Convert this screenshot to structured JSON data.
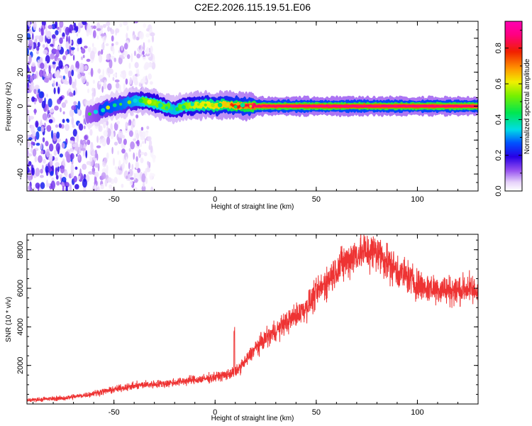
{
  "title": "C2E2.2026.115.19.51.E06",
  "chart_data": [
    {
      "type": "heatmap",
      "name": "spectrogram",
      "xlabel": "Height of straight line (km)",
      "ylabel": "Frequency (Hz)",
      "xlim": [
        -93,
        130
      ],
      "ylim": [
        -50,
        50
      ],
      "xticks": [
        -50,
        0,
        50,
        100
      ],
      "yticks": [
        -40,
        -20,
        0,
        20,
        40
      ],
      "colorbar": {
        "label": "Normalized spectral amplitude",
        "range": [
          0.0,
          0.95
        ],
        "ticks": [
          0.0,
          0.2,
          0.4,
          0.6,
          0.8
        ],
        "tick_labels": [
          "0.0",
          "0.2",
          "0.4",
          "0.6",
          "0.8"
        ]
      },
      "noise_region_x": [
        -93,
        -30
      ],
      "ridge": [
        {
          "x": -63,
          "y": -5,
          "amp": 0.25
        },
        {
          "x": -60,
          "y": -4,
          "amp": 0.3
        },
        {
          "x": -57,
          "y": -3,
          "amp": 0.35
        },
        {
          "x": -54,
          "y": -1,
          "amp": 0.4
        },
        {
          "x": -50,
          "y": 0,
          "amp": 0.42
        },
        {
          "x": -46,
          "y": 1,
          "amp": 0.45
        },
        {
          "x": -42,
          "y": 3,
          "amp": 0.5
        },
        {
          "x": -38,
          "y": 3,
          "amp": 0.55
        },
        {
          "x": -34,
          "y": 3,
          "amp": 0.6
        },
        {
          "x": -30,
          "y": 2,
          "amp": 0.62
        },
        {
          "x": -26,
          "y": 0,
          "amp": 0.6
        },
        {
          "x": -20,
          "y": -2,
          "amp": 0.55
        },
        {
          "x": -15,
          "y": 0,
          "amp": 0.6
        },
        {
          "x": -10,
          "y": 0,
          "amp": 0.7
        },
        {
          "x": -5,
          "y": 1,
          "amp": 0.72
        },
        {
          "x": 0,
          "y": 0,
          "amp": 0.75
        },
        {
          "x": 5,
          "y": 1,
          "amp": 0.78
        },
        {
          "x": 10,
          "y": 0,
          "amp": 0.82
        },
        {
          "x": 15,
          "y": 0,
          "amp": 0.85
        },
        {
          "x": 20,
          "y": 0,
          "amp": 0.9
        },
        {
          "x": 40,
          "y": 0,
          "amp": 0.92
        },
        {
          "x": 60,
          "y": 0,
          "amp": 0.93
        },
        {
          "x": 80,
          "y": 0,
          "amp": 0.92
        },
        {
          "x": 100,
          "y": 0,
          "amp": 0.92
        },
        {
          "x": 130,
          "y": 0,
          "amp": 0.9
        }
      ]
    },
    {
      "type": "line",
      "name": "snr",
      "xlabel": "Height of straight line (km)",
      "ylabel": "SNR (10 * v/v)",
      "xlim": [
        -93,
        130
      ],
      "ylim": [
        0,
        8800
      ],
      "xticks": [
        -50,
        0,
        50,
        100
      ],
      "yticks": [
        2000,
        4000,
        6000,
        8000
      ],
      "color": "#ee3333",
      "points": [
        [
          -93,
          200
        ],
        [
          -85,
          250
        ],
        [
          -75,
          300
        ],
        [
          -65,
          450
        ],
        [
          -55,
          650
        ],
        [
          -45,
          850
        ],
        [
          -35,
          1000
        ],
        [
          -25,
          1050
        ],
        [
          -15,
          1200
        ],
        [
          -5,
          1300
        ],
        [
          0,
          1400
        ],
        [
          5,
          1500
        ],
        [
          10,
          1650
        ],
        [
          15,
          2200
        ],
        [
          20,
          2900
        ],
        [
          25,
          3400
        ],
        [
          30,
          3800
        ],
        [
          35,
          4200
        ],
        [
          40,
          4600
        ],
        [
          45,
          5000
        ],
        [
          50,
          5700
        ],
        [
          55,
          6300
        ],
        [
          60,
          7000
        ],
        [
          65,
          7400
        ],
        [
          70,
          7800
        ],
        [
          75,
          7900
        ],
        [
          80,
          7900
        ],
        [
          85,
          7400
        ],
        [
          90,
          6900
        ],
        [
          95,
          6600
        ],
        [
          100,
          6200
        ],
        [
          105,
          6000
        ],
        [
          110,
          6000
        ],
        [
          115,
          5900
        ],
        [
          120,
          5900
        ],
        [
          125,
          6000
        ],
        [
          130,
          5800
        ]
      ],
      "spike": {
        "x": 9.5,
        "y": 4000
      }
    }
  ]
}
